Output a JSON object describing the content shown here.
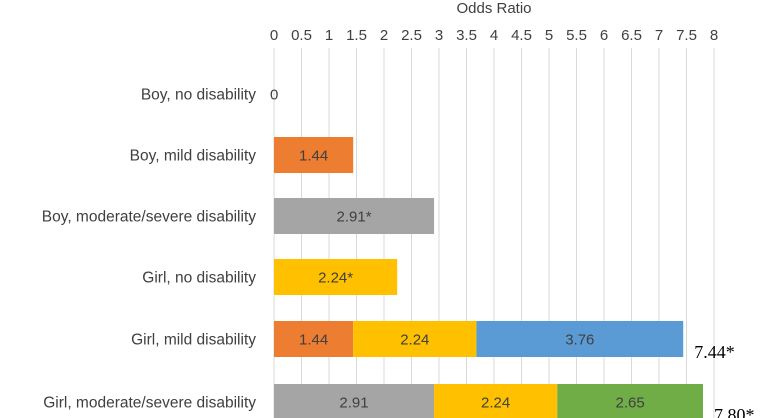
{
  "chart_data": {
    "type": "bar",
    "orientation": "horizontal",
    "stacked": true,
    "axis_title": "Odds Ratio",
    "axis_position": "top",
    "xlim": [
      0,
      8
    ],
    "tick_labels": [
      "0",
      "0.5",
      "1",
      "1.5",
      "2",
      "2.5",
      "3",
      "3.5",
      "4",
      "4.5",
      "5",
      "5.5",
      "6",
      "6.5",
      "7",
      "7.5",
      "8"
    ],
    "grid": true,
    "categories": [
      "Boy, no disability",
      "Boy, mild disability",
      "Boy, moderate/severe disability",
      "Girl, no disability",
      "Girl, mild disability",
      "Girl, moderate/severe disability"
    ],
    "series_colors": {
      "gray": "#a5a5a5",
      "orange": "#ed7d31",
      "yellow": "#ffc000",
      "blue": "#5b9bd5",
      "green": "#70ad47"
    },
    "rows": [
      {
        "category": "Boy, no disability",
        "segments": [],
        "zero_label": "0",
        "total_label": ""
      },
      {
        "category": "Boy, mild disability",
        "segments": [
          {
            "value": 1.44,
            "label": "1.44",
            "color": "orange"
          }
        ],
        "total_label": ""
      },
      {
        "category": "Boy, moderate/severe disability",
        "segments": [
          {
            "value": 2.91,
            "label": "2.91*",
            "color": "gray"
          }
        ],
        "total_label": ""
      },
      {
        "category": "Girl, no disability",
        "segments": [
          {
            "value": 2.24,
            "label": "2.24*",
            "color": "yellow"
          }
        ],
        "total_label": ""
      },
      {
        "category": "Girl, mild disability",
        "segments": [
          {
            "value": 1.44,
            "label": "1.44",
            "color": "orange"
          },
          {
            "value": 2.24,
            "label": "2.24",
            "color": "yellow"
          },
          {
            "value": 3.76,
            "label": "3.76",
            "color": "blue"
          }
        ],
        "total_label": "7.44*"
      },
      {
        "category": "Girl, moderate/severe disability",
        "segments": [
          {
            "value": 2.91,
            "label": "2.91",
            "color": "gray"
          },
          {
            "value": 2.24,
            "label": "2.24",
            "color": "yellow"
          },
          {
            "value": 2.65,
            "label": "2.65",
            "color": "green"
          }
        ],
        "total_label": "7.80*"
      }
    ]
  }
}
